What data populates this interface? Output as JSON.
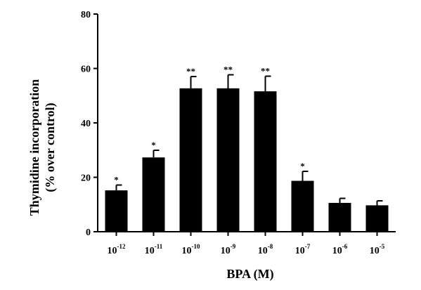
{
  "chart_data": {
    "type": "bar",
    "title": "",
    "xlabel": "BPA (M)",
    "ylabel_lines": [
      "Thymidine incorporation",
      "(% over control)"
    ],
    "ylim": [
      0,
      80
    ],
    "y_ticks": [
      "0",
      "20",
      "40",
      "60",
      "80"
    ],
    "categories": [
      {
        "base": "10",
        "exp": "-12"
      },
      {
        "base": "10",
        "exp": "-11"
      },
      {
        "base": "10",
        "exp": "-10"
      },
      {
        "base": "10",
        "exp": "-9"
      },
      {
        "base": "10",
        "exp": "-8"
      },
      {
        "base": "10",
        "exp": "-7"
      },
      {
        "base": "10",
        "exp": "-6"
      },
      {
        "base": "10",
        "exp": "-5"
      }
    ],
    "values": [
      15.2,
      27.3,
      52.7,
      52.7,
      51.6,
      18.7,
      10.6,
      9.7
    ],
    "error_upper": [
      2.0,
      2.6,
      4.3,
      5.0,
      5.5,
      3.5,
      1.7,
      1.6
    ],
    "significance": [
      "*",
      "*",
      "**",
      "**",
      "**",
      "*",
      "",
      ""
    ],
    "grid": false,
    "legend": "none",
    "colors": {
      "bar": "#000000",
      "axis": "#000000"
    }
  }
}
